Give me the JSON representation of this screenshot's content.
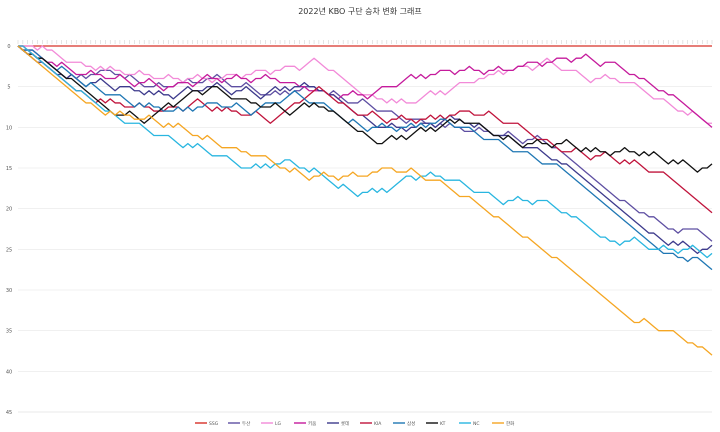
{
  "chart_data": {
    "type": "line",
    "title": "2022년 KBO 구단 승차 변화 그래프",
    "xlabel": "",
    "ylabel": "",
    "ylim": [
      0,
      45
    ],
    "y_reversed": true,
    "y_ticks": [
      0,
      5,
      10,
      15,
      20,
      25,
      30,
      35,
      40,
      45
    ],
    "grid": true,
    "legend_position": "bottom",
    "x_points": 144,
    "series": [
      {
        "name": "SSG",
        "color": "#d73027",
        "knots": [
          [
            0,
            0
          ],
          [
            143,
            0
          ]
        ]
      },
      {
        "name": "두산",
        "color": "#5e4fa2",
        "knots": [
          [
            0,
            0
          ],
          [
            5,
            2
          ],
          [
            10,
            4
          ],
          [
            18,
            3
          ],
          [
            28,
            5
          ],
          [
            40,
            4
          ],
          [
            52,
            6
          ],
          [
            60,
            5
          ],
          [
            70,
            7
          ],
          [
            80,
            9
          ],
          [
            90,
            10
          ],
          [
            100,
            11
          ],
          [
            110,
            12
          ],
          [
            118,
            17
          ],
          [
            124,
            19
          ],
          [
            130,
            21
          ],
          [
            136,
            23
          ],
          [
            140,
            22
          ],
          [
            143,
            25.5
          ]
        ]
      },
      {
        "name": "LG",
        "color": "#f28ad8",
        "knots": [
          [
            0,
            0
          ],
          [
            5,
            0
          ],
          [
            10,
            2
          ],
          [
            20,
            3
          ],
          [
            30,
            4
          ],
          [
            40,
            4
          ],
          [
            52,
            3
          ],
          [
            60,
            2
          ],
          [
            64,
            2.5
          ],
          [
            70,
            6
          ],
          [
            80,
            7
          ],
          [
            90,
            5
          ],
          [
            100,
            3
          ],
          [
            110,
            2
          ],
          [
            118,
            4
          ],
          [
            124,
            4
          ],
          [
            130,
            6
          ],
          [
            136,
            8
          ],
          [
            140,
            8.5
          ],
          [
            143,
            9.5
          ]
        ]
      },
      {
        "name": "키움",
        "color": "#c51b9c",
        "knots": [
          [
            0,
            0
          ],
          [
            4,
            1
          ],
          [
            10,
            3
          ],
          [
            20,
            4
          ],
          [
            30,
            5
          ],
          [
            40,
            4
          ],
          [
            52,
            4
          ],
          [
            58,
            5
          ],
          [
            64,
            6
          ],
          [
            72,
            6
          ],
          [
            80,
            4
          ],
          [
            90,
            3
          ],
          [
            100,
            3
          ],
          [
            106,
            2
          ],
          [
            116,
            1.5
          ],
          [
            122,
            2
          ],
          [
            128,
            4
          ],
          [
            134,
            6
          ],
          [
            139,
            9
          ],
          [
            143,
            11
          ]
        ]
      },
      {
        "name": "롯데",
        "color": "#3d3a8c",
        "knots": [
          [
            0,
            0
          ],
          [
            4,
            2
          ],
          [
            10,
            4
          ],
          [
            20,
            5
          ],
          [
            30,
            6
          ],
          [
            40,
            5
          ],
          [
            50,
            6
          ],
          [
            56,
            5
          ],
          [
            62,
            5
          ],
          [
            68,
            8
          ],
          [
            74,
            10
          ],
          [
            80,
            10
          ],
          [
            90,
            9
          ],
          [
            100,
            11
          ],
          [
            108,
            13
          ],
          [
            116,
            16
          ],
          [
            122,
            20
          ],
          [
            128,
            23
          ],
          [
            134,
            24
          ],
          [
            139,
            25
          ],
          [
            143,
            25
          ]
        ]
      },
      {
        "name": "KIA",
        "color": "#c0143c",
        "knots": [
          [
            0,
            0
          ],
          [
            5,
            3
          ],
          [
            12,
            6
          ],
          [
            20,
            7
          ],
          [
            30,
            8
          ],
          [
            36,
            7
          ],
          [
            44,
            8
          ],
          [
            52,
            9
          ],
          [
            56,
            7
          ],
          [
            62,
            5
          ],
          [
            68,
            8
          ],
          [
            76,
            9
          ],
          [
            84,
            9
          ],
          [
            92,
            8
          ],
          [
            100,
            9
          ],
          [
            106,
            11
          ],
          [
            112,
            13
          ],
          [
            120,
            13.5
          ],
          [
            128,
            14.5
          ],
          [
            134,
            16
          ],
          [
            139,
            19
          ],
          [
            143,
            20.5
          ]
        ]
      },
      {
        "name": "삼성",
        "color": "#1f77b4",
        "knots": [
          [
            0,
            0
          ],
          [
            6,
            2
          ],
          [
            14,
            5
          ],
          [
            24,
            7
          ],
          [
            32,
            8
          ],
          [
            40,
            7
          ],
          [
            48,
            8
          ],
          [
            56,
            6
          ],
          [
            62,
            7
          ],
          [
            70,
            10
          ],
          [
            80,
            10
          ],
          [
            88,
            9
          ],
          [
            96,
            11
          ],
          [
            104,
            13
          ],
          [
            112,
            15
          ],
          [
            118,
            19
          ],
          [
            124,
            23
          ],
          [
            130,
            25
          ],
          [
            136,
            26
          ],
          [
            140,
            26
          ],
          [
            143,
            28.5
          ]
        ]
      },
      {
        "name": "KT",
        "color": "#111111",
        "knots": [
          [
            0,
            0
          ],
          [
            5,
            2
          ],
          [
            12,
            5
          ],
          [
            18,
            8
          ],
          [
            26,
            9
          ],
          [
            34,
            6
          ],
          [
            40,
            5
          ],
          [
            48,
            7
          ],
          [
            56,
            8
          ],
          [
            62,
            7
          ],
          [
            68,
            10
          ],
          [
            74,
            12
          ],
          [
            80,
            11
          ],
          [
            86,
            10
          ],
          [
            92,
            9
          ],
          [
            98,
            11
          ],
          [
            104,
            12
          ],
          [
            112,
            12
          ],
          [
            120,
            13
          ],
          [
            128,
            13
          ],
          [
            134,
            14
          ],
          [
            139,
            15
          ],
          [
            143,
            15
          ]
        ]
      },
      {
        "name": "NC",
        "color": "#29b6e0",
        "knots": [
          [
            0,
            0
          ],
          [
            4,
            2
          ],
          [
            10,
            5
          ],
          [
            18,
            8
          ],
          [
            26,
            10
          ],
          [
            34,
            12
          ],
          [
            40,
            13
          ],
          [
            48,
            15
          ],
          [
            56,
            14
          ],
          [
            62,
            16
          ],
          [
            68,
            18
          ],
          [
            74,
            18
          ],
          [
            80,
            16
          ],
          [
            86,
            16
          ],
          [
            92,
            17
          ],
          [
            100,
            19
          ],
          [
            108,
            19
          ],
          [
            114,
            21
          ],
          [
            120,
            24
          ],
          [
            126,
            24
          ],
          [
            132,
            25
          ],
          [
            138,
            25
          ],
          [
            143,
            25.5
          ]
        ]
      },
      {
        "name": "한화",
        "color": "#f5a623",
        "knots": [
          [
            0,
            0
          ],
          [
            4,
            3
          ],
          [
            10,
            7
          ],
          [
            18,
            8
          ],
          [
            26,
            9
          ],
          [
            34,
            10
          ],
          [
            40,
            12
          ],
          [
            46,
            13
          ],
          [
            52,
            14
          ],
          [
            58,
            16
          ],
          [
            64,
            16
          ],
          [
            70,
            16
          ],
          [
            76,
            15
          ],
          [
            84,
            16
          ],
          [
            90,
            18
          ],
          [
            96,
            20
          ],
          [
            102,
            23
          ],
          [
            108,
            25
          ],
          [
            114,
            28
          ],
          [
            120,
            32
          ],
          [
            124,
            34
          ],
          [
            128,
            34
          ],
          [
            134,
            35
          ],
          [
            140,
            37
          ],
          [
            143,
            39
          ]
        ]
      }
    ]
  }
}
